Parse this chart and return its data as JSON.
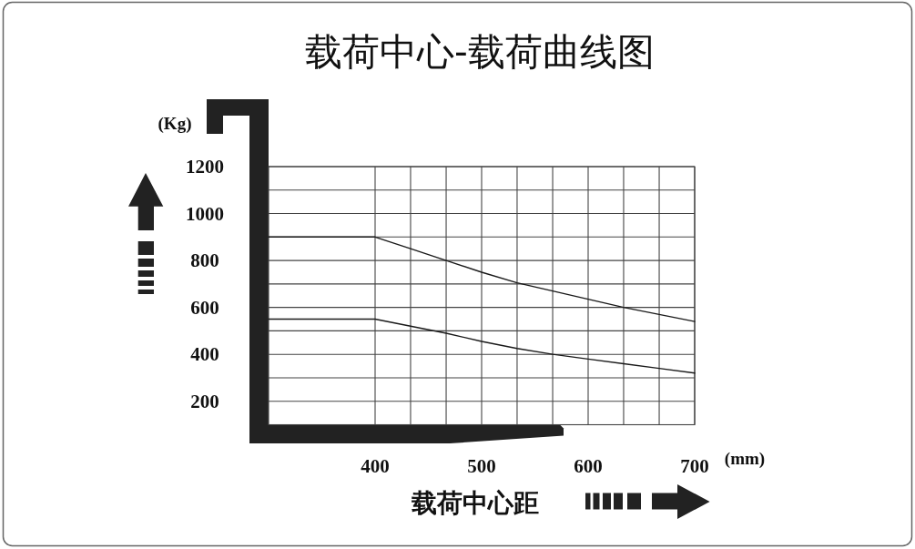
{
  "chart_data": {
    "type": "line",
    "title": "载荷中心-载荷曲线图",
    "xlabel": "载荷中心距",
    "ylabel": "(Kg)",
    "annotations": [
      "(mm)"
    ],
    "xlim": [
      300,
      700
    ],
    "ylim": [
      100,
      1200
    ],
    "xticks": [
      400,
      {
        "value": 433.3,
        "label": null
      },
      {
        "value": 466.7,
        "label": null
      },
      500,
      {
        "value": 533.3,
        "label": null
      },
      {
        "value": 566.7,
        "label": null
      },
      600,
      {
        "value": 633.3,
        "label": null
      },
      {
        "value": 666.7,
        "label": null
      },
      700
    ],
    "yticks": [
      {
        "value": 100,
        "label": null
      },
      200,
      {
        "value": 300,
        "label": null
      },
      400,
      {
        "value": 500,
        "label": null
      },
      600,
      {
        "value": 700,
        "label": null
      },
      800,
      {
        "value": 900,
        "label": null
      },
      1000,
      {
        "value": 1100,
        "label": null
      },
      1200
    ],
    "grid": true,
    "series": [
      {
        "color": "#1a1a1a",
        "x": [
          300,
          400,
          433.3,
          466.7,
          500,
          533.3,
          566.7,
          600,
          633.3,
          666.7,
          700
        ],
        "values": [
          900,
          900,
          850,
          800,
          750,
          705,
          670,
          635,
          600,
          570,
          540
        ]
      },
      {
        "color": "#1a1a1a",
        "x": [
          300,
          400,
          433.3,
          466.7,
          500,
          533.3,
          566.7,
          600,
          633.3,
          666.7,
          700
        ],
        "values": [
          550,
          550,
          520,
          490,
          455,
          425,
          400,
          380,
          360,
          340,
          320
        ]
      }
    ]
  }
}
